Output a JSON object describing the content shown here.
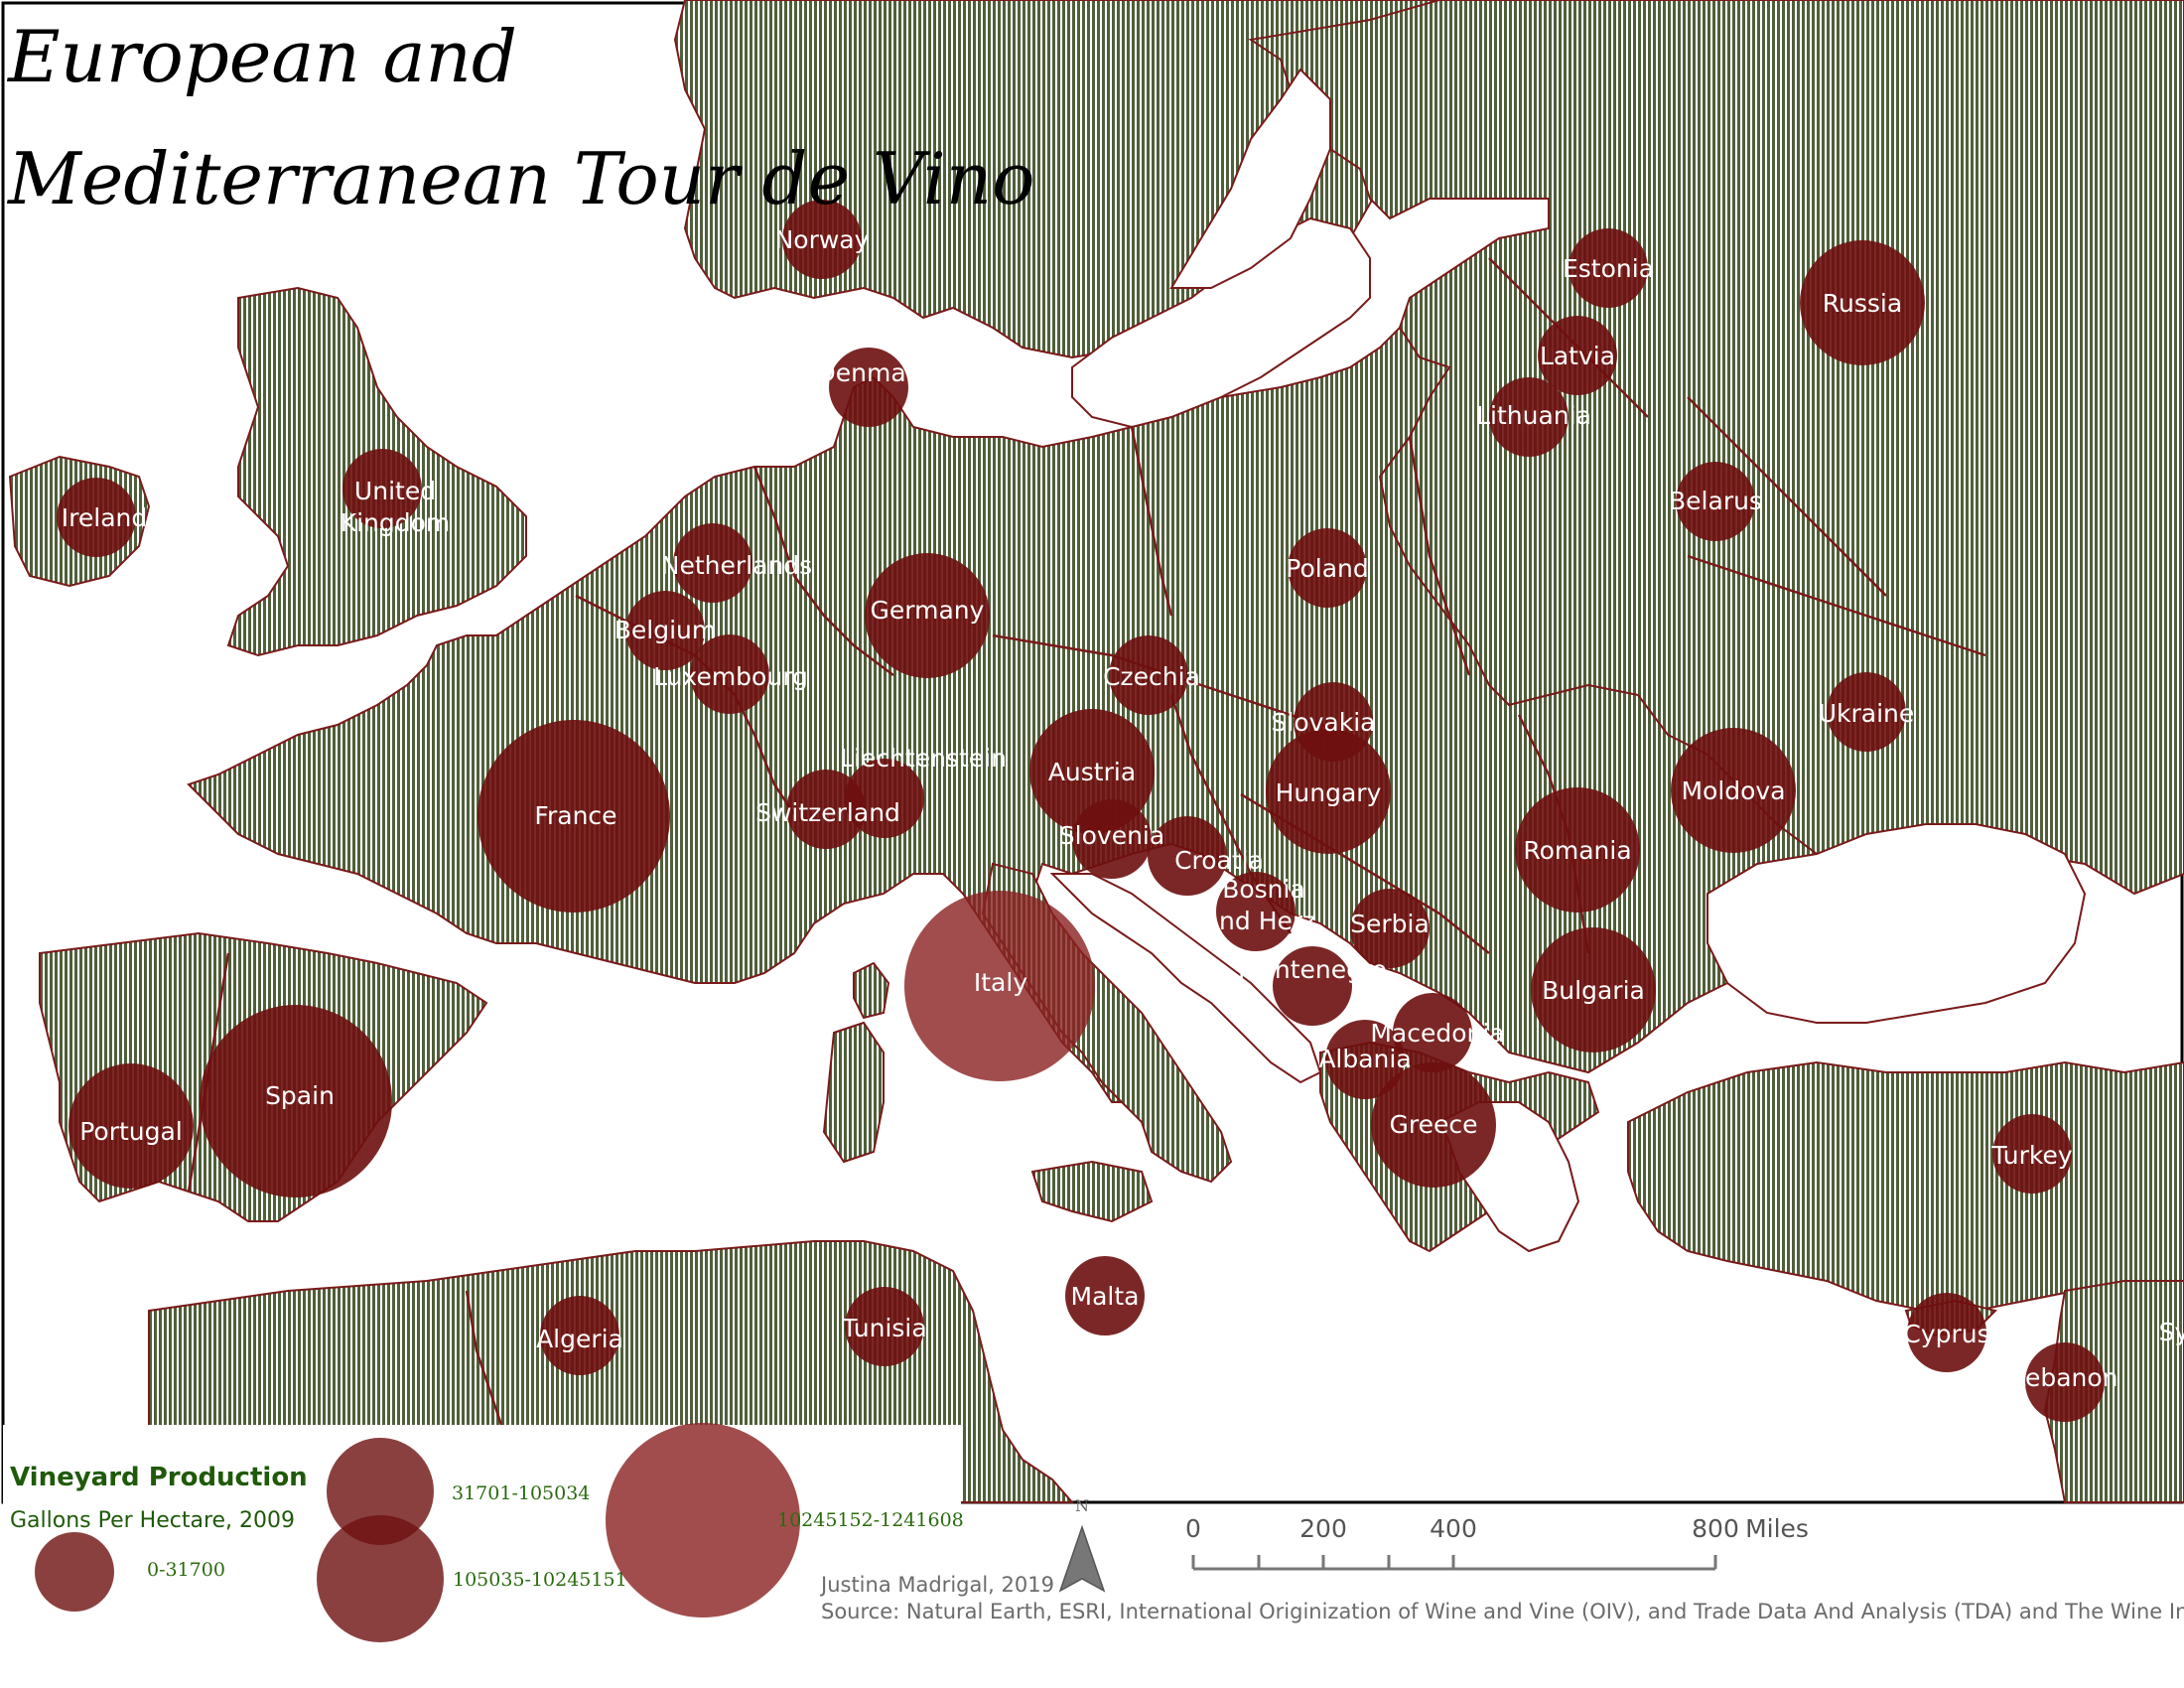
{
  "title": {
    "line1": "European and",
    "line2": "Mediterranean Tour de Vino"
  },
  "colors": {
    "land_stripe_a": "#4f5f3a",
    "land_stripe_b": "#ffffff",
    "border": "#7a1a1a",
    "bubble": "#6e1010",
    "bubble_translucent": "#8a2020",
    "legend_text": "#1f5a0a",
    "water": "#ffffff"
  },
  "legend": {
    "title": "Vineyard Production",
    "subtitle": "Gallons Per Hectare, 2009",
    "classes": [
      {
        "label": "0-31700",
        "size": "small"
      },
      {
        "label": "31701-105034",
        "size": "medium"
      },
      {
        "label": "105035-10245151",
        "size": "large"
      },
      {
        "label": "10245152-1241608",
        "size": "largest"
      }
    ]
  },
  "north_arrow": {
    "label": "N",
    "icon": "north-arrow-icon"
  },
  "scale_bar": {
    "ticks": [
      "0",
      "200",
      "400",
      "800"
    ],
    "unit": "Miles"
  },
  "credits": {
    "author": "Justina Madrigal, 2019",
    "source": "Source: Natural Earth, ESRI, International Originization of Wine and Vine (OIV), and Trade Data And Analysis (TDA) and The Wine Insitue."
  },
  "countries": [
    {
      "id": "norway",
      "lines": [
        "Norway"
      ],
      "size": "small"
    },
    {
      "id": "estonia",
      "lines": [
        "Estonia"
      ],
      "size": "small"
    },
    {
      "id": "russia",
      "lines": [
        "Russia"
      ],
      "size": "medium"
    },
    {
      "id": "latvia",
      "lines": [
        "Latvia"
      ],
      "size": "small"
    },
    {
      "id": "denmark",
      "lines": [
        "Denmark"
      ],
      "size": "small"
    },
    {
      "id": "lithuania",
      "lines": [
        "Lithuania"
      ],
      "size": "small"
    },
    {
      "id": "ireland",
      "lines": [
        "Ireland"
      ],
      "size": "small"
    },
    {
      "id": "uk",
      "lines": [
        "United",
        "Kingdom"
      ],
      "size": "small"
    },
    {
      "id": "belarus",
      "lines": [
        "Belarus"
      ],
      "size": "small"
    },
    {
      "id": "netherlands",
      "lines": [
        "Netherlands"
      ],
      "size": "small"
    },
    {
      "id": "poland",
      "lines": [
        "Poland"
      ],
      "size": "small"
    },
    {
      "id": "germany",
      "lines": [
        "Germany"
      ],
      "size": "medium"
    },
    {
      "id": "belgium",
      "lines": [
        "Belgium"
      ],
      "size": "small"
    },
    {
      "id": "czechia",
      "lines": [
        "Czechia"
      ],
      "size": "small"
    },
    {
      "id": "luxembourg",
      "lines": [
        "Luxembourg"
      ],
      "size": "small"
    },
    {
      "id": "ukraine",
      "lines": [
        "Ukraine"
      ],
      "size": "small"
    },
    {
      "id": "slovakia",
      "lines": [
        "Slovakia"
      ],
      "size": "small"
    },
    {
      "id": "liechtenstein",
      "lines": [
        "Liechtenstein"
      ],
      "size": "small"
    },
    {
      "id": "austria",
      "lines": [
        "Austria"
      ],
      "size": "medium"
    },
    {
      "id": "moldova",
      "lines": [
        "Moldova"
      ],
      "size": "medium"
    },
    {
      "id": "hungary",
      "lines": [
        "Hungary"
      ],
      "size": "medium"
    },
    {
      "id": "france",
      "lines": [
        "France"
      ],
      "size": "large"
    },
    {
      "id": "switzerland",
      "lines": [
        "Switzerland"
      ],
      "size": "small"
    },
    {
      "id": "slovenia",
      "lines": [
        "Slovenia"
      ],
      "size": "small"
    },
    {
      "id": "romania",
      "lines": [
        "Romania"
      ],
      "size": "medium"
    },
    {
      "id": "croatia",
      "lines": [
        "Croatia"
      ],
      "size": "small"
    },
    {
      "id": "bosnia",
      "lines": [
        "Bosnia",
        "and Herz."
      ],
      "size": "small"
    },
    {
      "id": "serbia",
      "lines": [
        "Serbia"
      ],
      "size": "small"
    },
    {
      "id": "montenegro",
      "lines": [
        "Montenegro"
      ],
      "size": "small"
    },
    {
      "id": "italy",
      "lines": [
        "Italy"
      ],
      "size": "largest"
    },
    {
      "id": "bulgaria",
      "lines": [
        "Bulgaria"
      ],
      "size": "medium"
    },
    {
      "id": "macedonia",
      "lines": [
        "Macedonia"
      ],
      "size": "small"
    },
    {
      "id": "albania",
      "lines": [
        "Albania"
      ],
      "size": "small"
    },
    {
      "id": "spain",
      "lines": [
        "Spain"
      ],
      "size": "large"
    },
    {
      "id": "portugal",
      "lines": [
        "Portugal"
      ],
      "size": "medium"
    },
    {
      "id": "greece",
      "lines": [
        "Greece"
      ],
      "size": "medium"
    },
    {
      "id": "turkey",
      "lines": [
        "Turkey"
      ],
      "size": "small"
    },
    {
      "id": "malta",
      "lines": [
        "Malta"
      ],
      "size": "small"
    },
    {
      "id": "algeria",
      "lines": [
        "Algeria"
      ],
      "size": "small"
    },
    {
      "id": "tunisia",
      "lines": [
        "Tunisia"
      ],
      "size": "small"
    },
    {
      "id": "cyprus",
      "lines": [
        "Cyprus"
      ],
      "size": "small"
    },
    {
      "id": "lebanon",
      "lines": [
        "Lebanon"
      ],
      "size": "small"
    },
    {
      "id": "syria",
      "lines": [
        "Sy"
      ],
      "size": "none"
    }
  ]
}
